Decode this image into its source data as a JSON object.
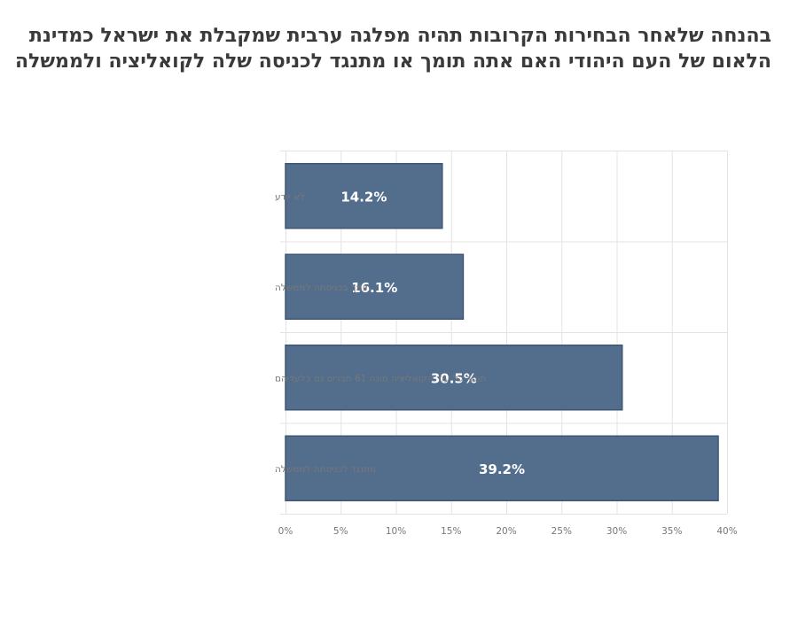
{
  "title_lines": [
    "בהנחה שלאחר הבחירות הקרובות תהיה מפלגה ערבית שמקבלת את ישראל כמדינת",
    "הלאום של העם היהודי האם אתה תומך או מתנגד לכניסה שלה לקואליציה ולממשלה"
  ],
  "chart_data": {
    "type": "bar",
    "orientation": "horizontal",
    "title": "בהנחה שלאחר הבחירות הקרובות תהיה מפלגה ערבית שמקבלת את ישראל כמדינת הלאום של העם היהודי האם אתה תומך או מתנגד לכניסה שלה לקואליציה ולממשלה",
    "categories": [
      "לא יודע",
      "תומך בכניסתה לממשלה",
      "תומך כל עוד הקואליציה מונה 61 חברים גם בלעדיהם",
      "מתנגד לכניסתה לממשלה"
    ],
    "values": [
      14.2,
      16.1,
      30.5,
      39.2
    ],
    "data_labels": [
      "14.2%",
      "16.1%",
      "30.5%",
      "39.2%"
    ],
    "xlim": [
      0,
      40
    ],
    "x_ticks": [
      0,
      5,
      10,
      15,
      20,
      25,
      30,
      35,
      40
    ],
    "x_tick_labels": [
      "0%",
      "5%",
      "10%",
      "15%",
      "20%",
      "25%",
      "30%",
      "35%",
      "40%"
    ],
    "grid": true,
    "legend": "none",
    "colors": {
      "bar": "#536e8d",
      "bar_edge": "#3e5775",
      "grid": "#e3e3e3",
      "label": "#777777",
      "data_label": "#ffffff",
      "title": "#3a3a3a"
    }
  }
}
